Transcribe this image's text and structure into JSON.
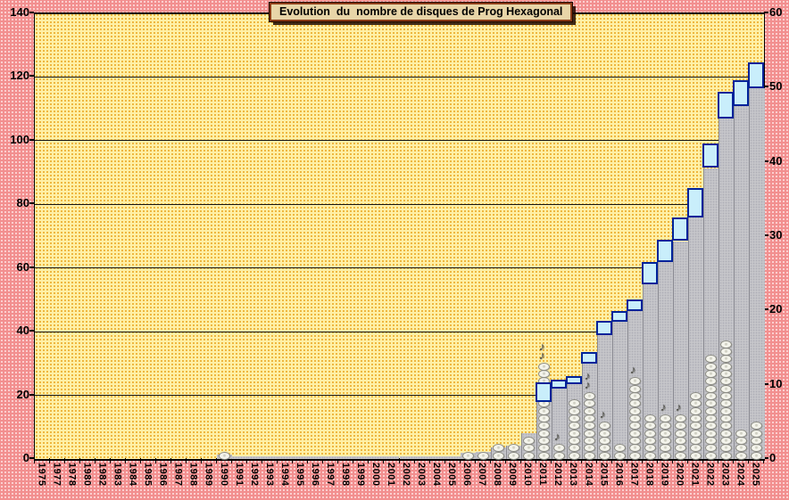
{
  "title_box": "Evolution  du  nombre de disques de Prog Hexagonal",
  "colors": {
    "outer_bg": "#f28f8f",
    "outer_dots": "#ffdede",
    "plot_bg": "#fff0a6",
    "plot_dots": "#e8a41e",
    "bar_fill": "#c5c5c9",
    "step_fill": "#c9eefb",
    "step_border": "#002299",
    "title_bg": "#e8d5a8",
    "title_border": "#8a3a16",
    "grid_line": "#141414",
    "note_icon_color": "#4c4c46"
  },
  "chart_data": {
    "type": "bar",
    "title": "Evolution  du  nombre de disques de Prog Hexagonal",
    "legend": "none",
    "grid": "horizontal",
    "categories": [
      "1975",
      "1977",
      "1978",
      "1980",
      "1982",
      "1983",
      "1984",
      "1985",
      "1986",
      "1987",
      "1988",
      "1989",
      "1990",
      "1991",
      "1992",
      "1993",
      "1994",
      "1995",
      "1996",
      "1997",
      "1998",
      "1999",
      "2000",
      "2001",
      "2002",
      "2003",
      "2004",
      "2005",
      "2006",
      "2007",
      "2008",
      "2009",
      "2010",
      "2011",
      "2012",
      "2013",
      "2014",
      "2015",
      "2016",
      "2017",
      "2018",
      "2019",
      "2020",
      "2021",
      "2022",
      "2023",
      "2024",
      "2025"
    ],
    "left_axis": {
      "min": 0,
      "max": 140,
      "step": 20,
      "ticks": [
        140,
        120,
        100,
        80,
        60,
        40,
        20,
        0
      ]
    },
    "right_axis": {
      "min": 0,
      "max": 60,
      "step": 10,
      "ticks": [
        60,
        50,
        40,
        30,
        20,
        10,
        0
      ]
    },
    "series": [
      {
        "name": "cumul-barres-grises",
        "type": "bar",
        "axis": "right",
        "values": [
          0,
          0,
          0,
          0,
          0,
          0,
          0,
          0,
          0,
          0,
          0,
          0,
          0.6,
          0.4,
          0.4,
          0.4,
          0.4,
          0.4,
          0.4,
          0.4,
          0.4,
          0.4,
          0.4,
          0.4,
          0.4,
          0.4,
          0.4,
          0.4,
          0.8,
          1,
          1.6,
          1.8,
          3.5,
          8.5,
          9.9,
          10.4,
          12.8,
          16.7,
          18.5,
          20,
          23.5,
          26.5,
          29.3,
          32.6,
          39.1,
          45.9,
          47.7,
          49.9
        ]
      },
      {
        "name": "disques-annuels-pictogrammes",
        "type": "icon-stack",
        "axis": "right",
        "unit_per_icon": 1,
        "counts": [
          0,
          0,
          0,
          0,
          0,
          0,
          0,
          0,
          0,
          0,
          0,
          0,
          1,
          0,
          0,
          0,
          0,
          0,
          0,
          0,
          0,
          0,
          0,
          0,
          0,
          0,
          0,
          0,
          1,
          1,
          2,
          2,
          3,
          13,
          2,
          8,
          9,
          5,
          2,
          11,
          6,
          6,
          6,
          9,
          14,
          16,
          4,
          5
        ]
      },
      {
        "name": "notes-musicales",
        "type": "icon",
        "glyph": "♪",
        "counts": [
          0,
          0,
          0,
          0,
          0,
          0,
          0,
          0,
          0,
          0,
          0,
          0,
          0,
          0,
          0,
          0,
          0,
          0,
          0,
          0,
          0,
          0,
          0,
          0,
          0,
          0,
          0,
          0,
          0,
          0,
          0,
          0,
          0,
          2,
          1,
          0,
          2,
          1,
          0,
          1,
          0,
          1,
          1,
          0,
          0,
          0,
          0,
          0
        ]
      },
      {
        "name": "paliers-cumul-carres-bleus",
        "type": "step-squares",
        "axis": "left",
        "points": [
          {
            "year": "2011",
            "from": 18,
            "to": 24
          },
          {
            "year": "2012",
            "from": 22,
            "to": 25
          },
          {
            "year": "2013",
            "from": 23.5,
            "to": 26
          },
          {
            "year": "2014",
            "from": 30,
            "to": 33.5
          },
          {
            "year": "2015",
            "from": 39,
            "to": 43.5
          },
          {
            "year": "2016",
            "from": 43,
            "to": 46.5
          },
          {
            "year": "2017",
            "from": 46.5,
            "to": 50
          },
          {
            "year": "2018",
            "from": 55,
            "to": 62
          },
          {
            "year": "2019",
            "from": 62,
            "to": 69
          },
          {
            "year": "2020",
            "from": 68.5,
            "to": 76
          },
          {
            "year": "2021",
            "from": 76,
            "to": 85
          },
          {
            "year": "2022",
            "from": 91.5,
            "to": 99
          },
          {
            "year": "2023",
            "from": 107,
            "to": 115.5
          },
          {
            "year": "2024",
            "from": 111,
            "to": 119
          },
          {
            "year": "2025",
            "from": 116.5,
            "to": 124.5
          }
        ]
      }
    ]
  }
}
